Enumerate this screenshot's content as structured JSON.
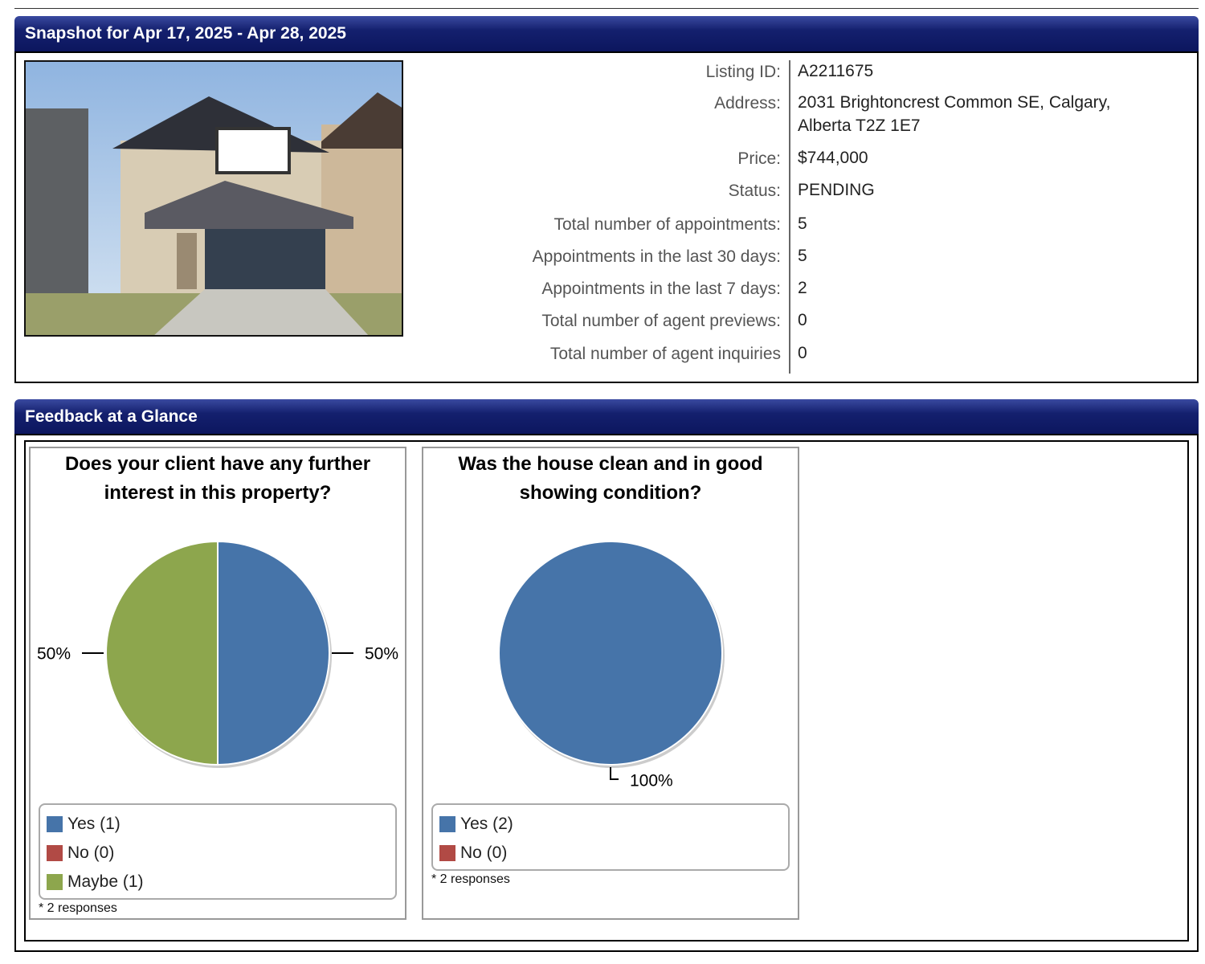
{
  "snapshot": {
    "title": "Snapshot for Apr 17, 2025 - Apr 28, 2025",
    "details": [
      {
        "label": "Listing ID:",
        "value": "A2211675"
      },
      {
        "label": "Address:",
        "value": "2031 Brightoncrest Common SE, Calgary, Alberta T2Z 1E7"
      },
      {
        "label": "Price:",
        "value": "$744,000"
      },
      {
        "label": "Status:",
        "value": "PENDING"
      },
      {
        "label": "Total number of appointments:",
        "value": "5"
      },
      {
        "label": "Appointments in the last 30 days:",
        "value": "5"
      },
      {
        "label": "Appointments in the last 7 days:",
        "value": "2"
      },
      {
        "label": "Total number of agent previews:",
        "value": "0"
      },
      {
        "label": "Total number of agent inquiries",
        "value": "0"
      }
    ]
  },
  "feedback": {
    "title": "Feedback at a Glance",
    "charts": [
      {
        "type": "pie",
        "title": "Does your client have any further interest in this property?",
        "categories": [
          "Yes (1)",
          "No (0)",
          "Maybe (1)"
        ],
        "values": [
          50,
          0,
          50
        ],
        "value_labels": [
          "50%",
          null,
          "50%"
        ],
        "colors": [
          "#4674a9",
          "#b14a45",
          "#8da64d"
        ],
        "note": "* 2 responses"
      },
      {
        "type": "pie",
        "title": "Was the house clean and in good showing condition?",
        "categories": [
          "Yes (2)",
          "No (0)"
        ],
        "values": [
          100,
          0
        ],
        "value_labels": [
          "100%",
          null
        ],
        "colors": [
          "#4674a9",
          "#b14a45"
        ],
        "note": "* 2 responses"
      }
    ]
  }
}
